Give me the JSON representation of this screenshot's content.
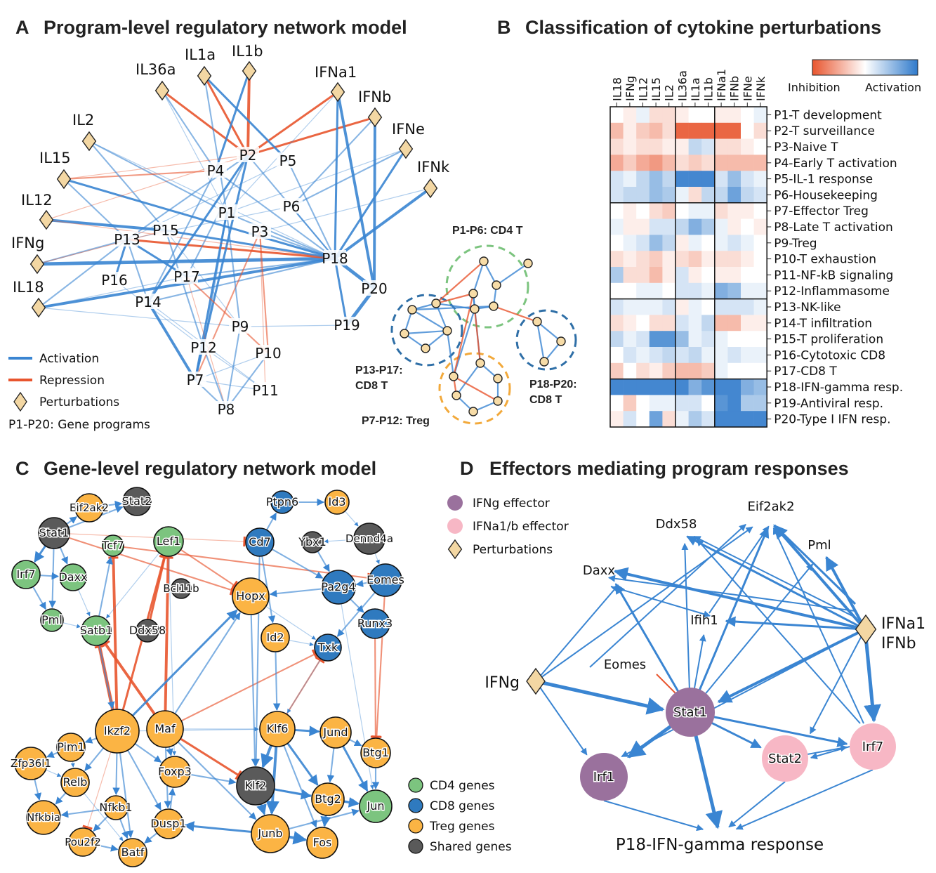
{
  "colors": {
    "activation": "#3a85d2",
    "repression": "#e8552e",
    "perturbation_fill": "#f3d7a3",
    "cd4": "#7cc47f",
    "cd8": "#2f7abf",
    "treg": "#fbb444",
    "shared": "#5a5a5a",
    "ifng_effector": "#9a719d",
    "ifna_effector": "#f7b7c5"
  },
  "panelA": {
    "letter": "A",
    "title": "Program-level regulatory network model",
    "perturbations": [
      "IL1a",
      "IL1b",
      "IL36a",
      "IFNa1",
      "IFNb",
      "IL2",
      "IFNe",
      "IL15",
      "IFNk",
      "IL12",
      "IFNg",
      "IL18"
    ],
    "programs": [
      "P1",
      "P2",
      "P3",
      "P4",
      "P5",
      "P6",
      "P8",
      "P9",
      "P10",
      "P11",
      "P12",
      "P13",
      "P14",
      "P15",
      "P16",
      "P17",
      "P18",
      "P19",
      "P20",
      "P7"
    ],
    "legend": {
      "activation": "Activation",
      "repression": "Repression",
      "perturbations": "Perturbations",
      "note": "P1-P20: Gene programs"
    },
    "clusters": {
      "cd4": "P1-P6: CD4 T",
      "cd8a_l1": "P13-P17:",
      "cd8a_l2": "CD8 T",
      "cd8b_l1": "P18-P20:",
      "cd8b_l2": "CD8 T",
      "treg": "P7-P12: Treg"
    }
  },
  "panelB": {
    "letter": "B",
    "title": "Classification of cytokine perturbations",
    "columns": [
      "IL18",
      "IFNg",
      "IL12",
      "IL15",
      "IL2",
      "IL36a",
      "IL1a",
      "IL1b",
      "IFNa1",
      "IFNb",
      "IFNe",
      "IFNk"
    ],
    "rows": [
      "P1-T development",
      "P2-T surveillance",
      "P3-Naive T",
      "P4-Early T activation",
      "P5-IL-1 response",
      "P6-Housekeeping",
      "P7-Effector Treg",
      "P8-Late T activation",
      "P9-Treg",
      "P10-T exhaustion",
      "P11-NF-kB signaling",
      "P12-Inflammasome",
      "P13-NK-like",
      "P14-T infiltration",
      "P15-T proliferation",
      "P16-Cytotoxic CD8",
      "P17-CD8 T",
      "P18-IFN-gamma resp.",
      "P19-Antiviral resp.",
      "P20-Type I IFN resp."
    ],
    "colorbar": {
      "low": "Inhibition",
      "high": "Activation"
    },
    "chart_data": {
      "type": "heatmap",
      "scale": "-1 inhibition to 1 activation",
      "values": [
        [
          0.0,
          -0.1,
          0.1,
          -0.2,
          -0.2,
          -0.1,
          0.0,
          0.0,
          -0.1,
          -0.1,
          0.0,
          0.1
        ],
        [
          -0.4,
          -0.1,
          -0.3,
          -0.4,
          -0.2,
          -0.9,
          -0.9,
          -0.9,
          -0.9,
          -0.9,
          0.0,
          -0.2
        ],
        [
          -0.2,
          -0.1,
          -0.2,
          -0.2,
          -0.1,
          -0.1,
          0.3,
          0.2,
          -0.2,
          -0.2,
          -0.1,
          0.0
        ],
        [
          -0.5,
          -0.3,
          -0.5,
          -0.6,
          -0.4,
          -0.2,
          -0.3,
          -0.2,
          -0.4,
          -0.4,
          -0.4,
          -0.4
        ],
        [
          0.2,
          0.1,
          0.3,
          0.5,
          0.3,
          0.9,
          0.9,
          0.9,
          0.2,
          0.5,
          0.2,
          0.1
        ],
        [
          0.2,
          0.3,
          0.3,
          0.5,
          0.4,
          0.1,
          -0.2,
          0.3,
          0.3,
          0.7,
          0.3,
          0.2
        ],
        [
          0.0,
          -0.1,
          0.0,
          -0.2,
          -0.3,
          0.0,
          0.1,
          0.1,
          -0.2,
          -0.1,
          -0.1,
          0.0
        ],
        [
          0.1,
          -0.1,
          -0.1,
          0.2,
          0.2,
          0.3,
          0.6,
          0.4,
          0.1,
          -0.1,
          0.0,
          -0.1
        ],
        [
          0.0,
          0.1,
          0.2,
          0.5,
          0.3,
          -0.1,
          0.1,
          0.0,
          0.1,
          0.2,
          0.1,
          0.0
        ],
        [
          -0.2,
          -0.1,
          -0.2,
          -0.3,
          -0.1,
          -0.2,
          -0.3,
          -0.1,
          -0.2,
          -0.2,
          -0.1,
          0.0
        ],
        [
          0.4,
          -0.2,
          -0.2,
          -0.4,
          -0.1,
          0.2,
          -0.1,
          0.0,
          -0.1,
          -0.1,
          0.0,
          0.0
        ],
        [
          0.0,
          0.0,
          0.1,
          0.1,
          0.0,
          0.2,
          0.2,
          0.1,
          0.6,
          0.5,
          0.1,
          0.1
        ],
        [
          0.2,
          0.1,
          0.1,
          0.1,
          0.2,
          -0.1,
          0.1,
          0.0,
          0.2,
          0.2,
          0.2,
          0.1
        ],
        [
          -0.2,
          -0.1,
          0.0,
          -0.2,
          -0.2,
          0.2,
          0.1,
          0.3,
          -0.4,
          -0.4,
          -0.1,
          -0.1
        ],
        [
          0.3,
          0.1,
          0.2,
          0.8,
          0.8,
          0.5,
          0.1,
          0.2,
          0.1,
          0.0,
          0.0,
          0.0
        ],
        [
          0.0,
          0.2,
          0.1,
          0.2,
          0.3,
          0.2,
          0.3,
          0.1,
          0.1,
          0.2,
          0.1,
          0.1
        ],
        [
          -0.3,
          0.0,
          -0.2,
          -0.1,
          -0.3,
          -0.4,
          -0.4,
          -0.3,
          0.1,
          0.0,
          0.0,
          0.0
        ],
        [
          0.9,
          0.9,
          0.9,
          0.9,
          0.9,
          0.9,
          0.6,
          0.8,
          0.9,
          0.9,
          0.6,
          0.5
        ],
        [
          0.0,
          -0.3,
          0.0,
          0.1,
          0.1,
          0.2,
          0.2,
          0.0,
          0.8,
          0.9,
          0.4,
          0.4
        ],
        [
          -0.1,
          0.2,
          0.0,
          0.7,
          -0.2,
          0.1,
          0.4,
          0.2,
          0.9,
          0.9,
          0.9,
          0.9
        ]
      ]
    }
  },
  "panelC": {
    "letter": "C",
    "title": "Gene-level regulatory network model",
    "genes": {
      "Eif2ak2": "Eif2ak2",
      "Stat2": "Stat2",
      "Stat1": "Stat1",
      "Tcf7": "Tcf7",
      "Lef1": "Lef1",
      "Irf7": "Irf7",
      "Daxx": "Daxx",
      "Bcl11b": "Bcl11b",
      "Pml": "Pml",
      "Satb1": "Satb1",
      "Ddx58": "Ddx58",
      "Ptpn6": "Ptpn6",
      "Id3": "Id3",
      "Cd7": "Cd7",
      "Ybx1": "Ybx1",
      "Dennd4a": "Dennd4a",
      "Eomes": "Eomes",
      "Hopx": "Hopx",
      "Pa2g4": "Pa2g4",
      "Runx3": "Runx3",
      "Id2": "Id2",
      "Txk": "Txk",
      "Ikzf2": "Ikzf2",
      "Maf": "Maf",
      "Pim1": "Pim1",
      "Klf6": "Klf6",
      "Jund": "Jund",
      "Zfp36l1": "Zfp36l1",
      "Foxp3": "Foxp3",
      "Btg1": "Btg1",
      "Relb": "Relb",
      "Klf2": "Klf2",
      "Nfkb1": "Nfkb1",
      "Btg2": "Btg2",
      "Jun": "Jun",
      "Nfkbia": "Nfkbia",
      "Dusp1": "Dusp1",
      "Junb": "Junb",
      "Pou2f2": "Pou2f2",
      "Batf": "Batf",
      "Fos": "Fos"
    },
    "legend": [
      "CD4 genes",
      "CD8 genes",
      "Treg genes",
      "Shared genes"
    ]
  },
  "panelD": {
    "letter": "D",
    "title": "Effectors mediating program responses",
    "legend": [
      "IFNg effector",
      "IFNa1/b effector",
      "Perturbations"
    ],
    "nodes": {
      "Eif2ak2": "Eif2ak2",
      "Ddx58": "Ddx58",
      "Pml": "Pml",
      "Daxx": "Daxx",
      "Ifih1": "Ifih1",
      "Eomes": "Eomes",
      "IFNg": "IFNg",
      "IFNa1": "IFNa1",
      "IFNb": "IFNb",
      "Stat1": "Stat1",
      "Stat2": "Stat2",
      "Irf7": "Irf7",
      "Irf1": "Irf1",
      "Program": "P18-IFN-gamma response"
    }
  }
}
